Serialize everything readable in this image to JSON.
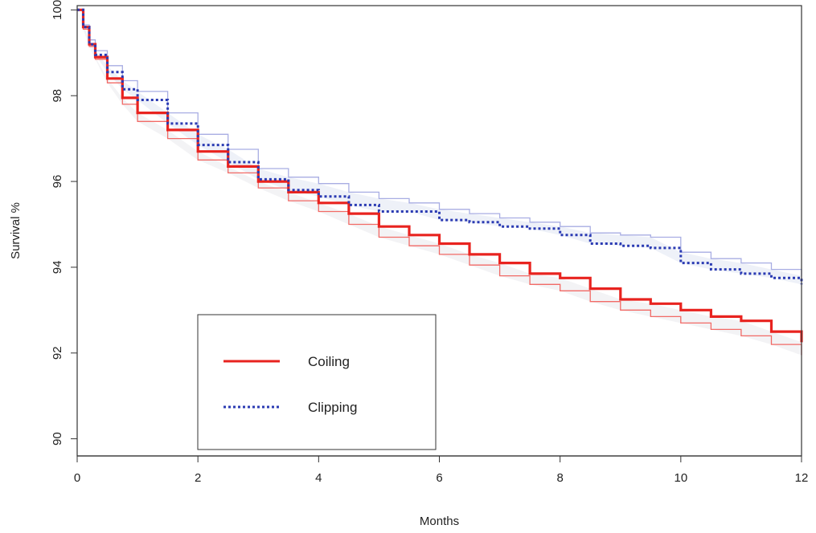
{
  "chart_data": {
    "type": "line",
    "title": "",
    "xlabel": "Months",
    "ylabel": "Survival %",
    "xlim": [
      0,
      12
    ],
    "ylim": [
      89.6,
      100.1
    ],
    "x_ticks": [
      "0",
      "2",
      "4",
      "6",
      "8",
      "10",
      "12"
    ],
    "y_ticks": [
      "90",
      "92",
      "94",
      "96",
      "98",
      "100"
    ],
    "grid": false,
    "legend_position": "bottom-left",
    "series": [
      {
        "name": "Coiling",
        "style": "solid",
        "color": "#e8231f",
        "x": [
          0,
          0.1,
          0.2,
          0.3,
          0.5,
          0.75,
          1,
          1.5,
          2,
          2.5,
          3,
          3.5,
          4,
          4.5,
          5,
          5.5,
          6,
          6.5,
          7,
          7.5,
          8,
          8.5,
          9,
          9.5,
          10,
          10.5,
          11,
          11.5,
          12
        ],
        "values": [
          100,
          99.6,
          99.2,
          98.9,
          98.4,
          97.95,
          97.6,
          97.2,
          96.7,
          96.35,
          96.0,
          95.75,
          95.5,
          95.25,
          94.95,
          94.75,
          94.55,
          94.3,
          94.1,
          93.85,
          93.75,
          93.5,
          93.25,
          93.15,
          93.0,
          92.85,
          92.75,
          92.5,
          92.25
        ],
        "ci_lower": [
          100,
          99.55,
          99.15,
          98.85,
          98.3,
          97.8,
          97.4,
          97.0,
          96.5,
          96.2,
          95.85,
          95.55,
          95.3,
          95.0,
          94.7,
          94.5,
          94.3,
          94.05,
          93.8,
          93.6,
          93.45,
          93.2,
          93.0,
          92.85,
          92.7,
          92.55,
          92.4,
          92.2,
          91.95
        ]
      },
      {
        "name": "Clipping",
        "style": "dotted",
        "color": "#2b3bb3",
        "x": [
          0,
          0.1,
          0.2,
          0.3,
          0.5,
          0.75,
          1,
          1.5,
          2,
          2.5,
          3,
          3.5,
          4,
          4.5,
          5,
          5.5,
          6,
          6.5,
          7,
          7.5,
          8,
          8.5,
          9,
          9.5,
          10,
          10.5,
          11,
          11.5,
          12
        ],
        "values": [
          100,
          99.6,
          99.2,
          98.95,
          98.55,
          98.15,
          97.9,
          97.35,
          96.85,
          96.45,
          96.05,
          95.8,
          95.65,
          95.45,
          95.3,
          95.3,
          95.1,
          95.05,
          94.95,
          94.9,
          94.75,
          94.55,
          94.5,
          94.45,
          94.1,
          93.95,
          93.85,
          93.75,
          93.6
        ],
        "ci_upper": [
          100,
          99.65,
          99.3,
          99.05,
          98.7,
          98.35,
          98.1,
          97.6,
          97.1,
          96.75,
          96.3,
          96.1,
          95.95,
          95.75,
          95.6,
          95.5,
          95.35,
          95.25,
          95.15,
          95.05,
          94.95,
          94.8,
          94.75,
          94.7,
          94.35,
          94.2,
          94.1,
          93.95,
          93.8
        ]
      }
    ]
  }
}
